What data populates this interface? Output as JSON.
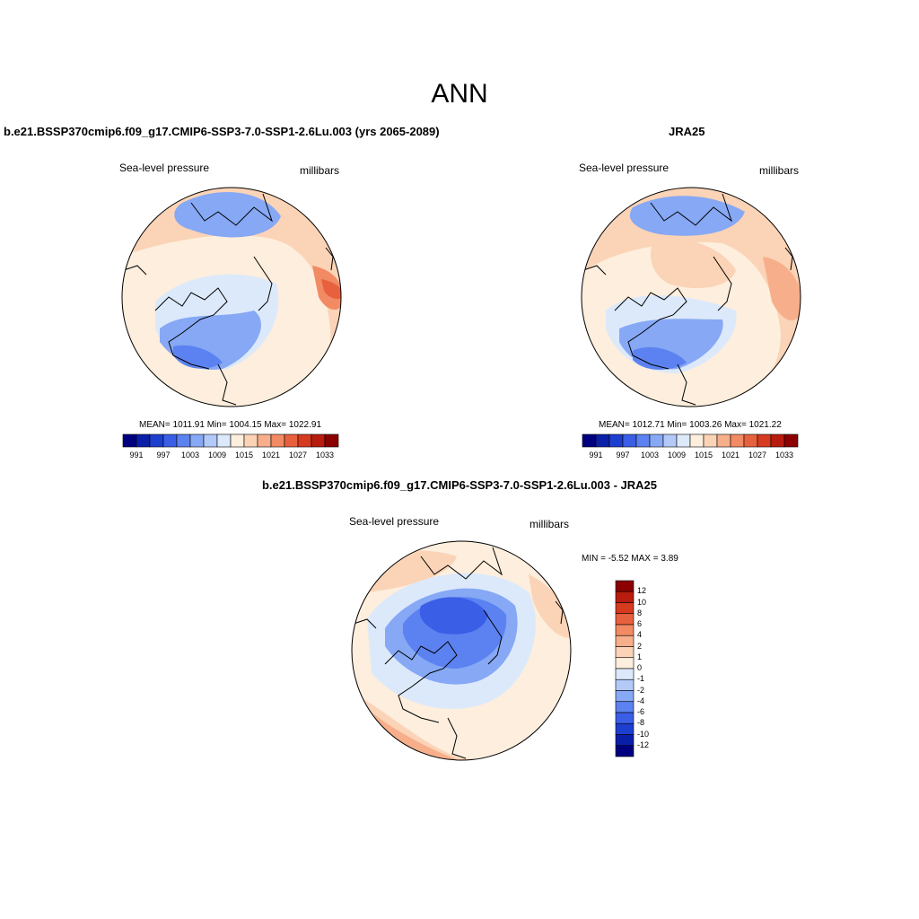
{
  "title": "ANN",
  "panels": [
    {
      "id": "model",
      "title": "b.e21.BSSP370cmip6.f09_g17.CMIP6-SSP3-7.0-SSP1-2.6Lu.003 (yrs 2065-2089)",
      "left_label": "Sea-level pressure",
      "right_label": "millibars",
      "stats": "MEAN= 1011.91  Min= 1004.15  Max= 1022.91"
    },
    {
      "id": "obs",
      "title": "JRA25",
      "left_label": "Sea-level pressure",
      "right_label": "millibars",
      "stats": "MEAN= 1012.71  Min= 1003.26  Max= 1021.22"
    },
    {
      "id": "diff",
      "title": "b.e21.BSSP370cmip6.f09_g17.CMIP6-SSP3-7.0-SSP1-2.6Lu.003 - JRA25",
      "left_label": "Sea-level pressure",
      "right_label": "millibars",
      "stats": "MIN =  -5.52 MAX =   3.89"
    }
  ],
  "abs_colorbar": {
    "colors": [
      "#00007f",
      "#0a1fa8",
      "#1d3fd0",
      "#3b5ee6",
      "#5b82f0",
      "#86a8f5",
      "#b3c9f8",
      "#dce9fb",
      "#fdeedd",
      "#fbd3b6",
      "#f7ae8a",
      "#f28a63",
      "#e8613e",
      "#d63a1f",
      "#b81c0e",
      "#8b0000"
    ],
    "labels": [
      "991",
      "997",
      "1003",
      "1009",
      "1015",
      "1021",
      "1027",
      "1033"
    ]
  },
  "diff_colorbar": {
    "colors": [
      "#00007f",
      "#0a1fa8",
      "#1d3fd0",
      "#3b5ee6",
      "#5b82f0",
      "#86a8f5",
      "#b3c9f8",
      "#dce9fb",
      "#fdeedd",
      "#fbd3b6",
      "#f7ae8a",
      "#f28a63",
      "#e8613e",
      "#d63a1f",
      "#b81c0e",
      "#8b0000"
    ],
    "labels": [
      "12",
      "10",
      "8",
      "6",
      "4",
      "2",
      "1",
      "0",
      "-1",
      "-2",
      "-4",
      "-6",
      "-8",
      "-10",
      "-12"
    ]
  }
}
